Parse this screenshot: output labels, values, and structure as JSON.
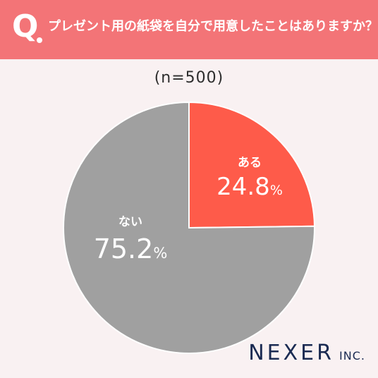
{
  "header": {
    "q_mark": "Q",
    "question": "プレゼント用の紙袋を自分で用意したことはありますか？",
    "background_color": "#f37477"
  },
  "sample_size": "(n=500)",
  "chart_data": {
    "type": "pie",
    "title": "プレゼント用の紙袋を自分で用意したことはありますか？",
    "n": 500,
    "start_angle": "12 o'clock",
    "direction": "clockwise",
    "slices": [
      {
        "label": "ある",
        "value": 24.8,
        "unit": "%",
        "color": "#fe5b4a"
      },
      {
        "label": "ない",
        "value": 75.2,
        "unit": "%",
        "color": "#a0a0a0"
      }
    ],
    "slice_border_color": "#ffffff"
  },
  "logo": {
    "main": "NEXER",
    "sub": "INC.",
    "color": "#1a2a52"
  }
}
